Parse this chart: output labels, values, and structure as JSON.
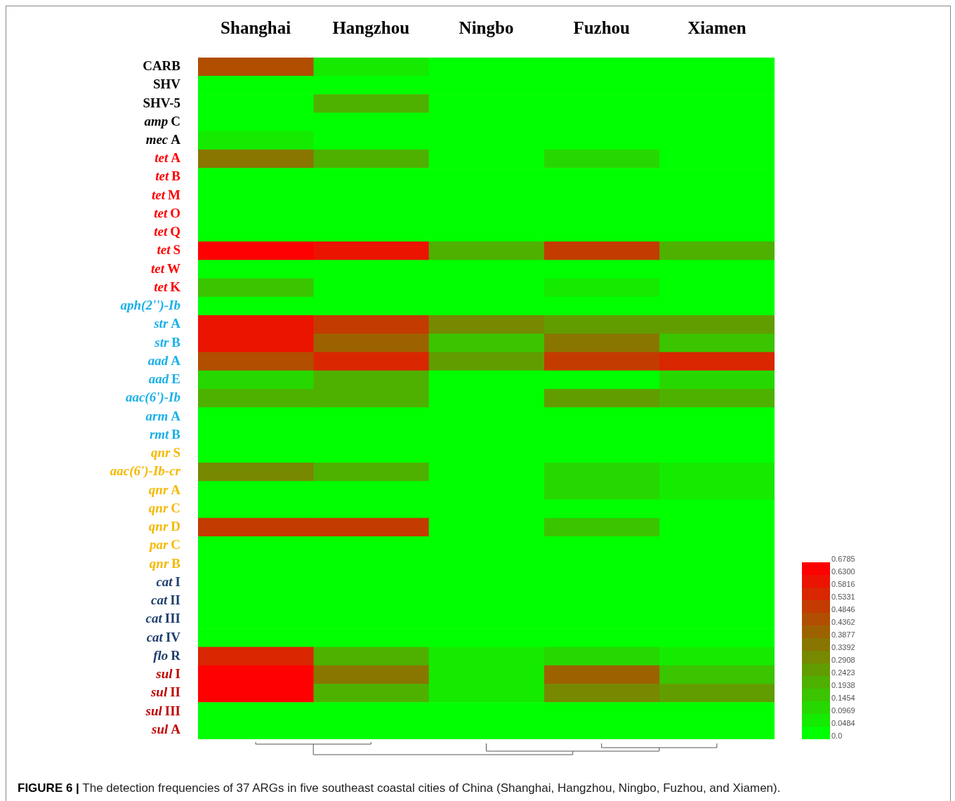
{
  "chart_data": {
    "type": "heatmap",
    "categories": [
      "Shanghai",
      "Hangzhou",
      "Ningbo",
      "Fuzhou",
      "Xiamen"
    ],
    "y_categories": [
      "CARB",
      "SHV",
      "SHV-5",
      "amp C",
      "mec A",
      "tet A",
      "tet B",
      "tet M",
      "tet O",
      "tet Q",
      "tet S",
      "tet W",
      "tet K",
      "aph(2'')-Ib",
      "str A",
      "str B",
      "aad A",
      "aad E",
      "aac(6')-Ib",
      "arm A",
      "rmt B",
      "qnr S",
      "aac(6')-Ib-cr",
      "qnr A",
      "qnr C",
      "qnr D",
      "par C",
      "qnr B",
      "cat I",
      "cat II",
      "cat III",
      "cat IV",
      "flo R",
      "sul I",
      "sul II",
      "sul III",
      "sul A"
    ],
    "cells": [
      [
        0.46,
        0.07,
        0,
        0,
        0
      ],
      [
        0.04,
        0.04,
        0,
        0,
        0
      ],
      [
        0,
        0.2,
        0,
        0,
        0
      ],
      [
        0,
        0,
        0,
        0,
        0
      ],
      [
        0.08,
        0,
        0,
        0,
        0
      ],
      [
        0.36,
        0.24,
        0,
        0.12,
        0.04
      ],
      [
        0,
        0,
        0,
        0,
        0
      ],
      [
        0,
        0,
        0,
        0,
        0
      ],
      [
        0,
        0,
        0,
        0,
        0
      ],
      [
        0,
        0,
        0,
        0,
        0
      ],
      [
        0.6785,
        0.62,
        0.2,
        0.5,
        0.2
      ],
      [
        0,
        0,
        0,
        0,
        0
      ],
      [
        0.15,
        0,
        0,
        0.08,
        0
      ],
      [
        0,
        0,
        0,
        0,
        0
      ],
      [
        0.62,
        0.53,
        0.32,
        0.26,
        0.26
      ],
      [
        0.62,
        0.4,
        0.17,
        0.34,
        0.17
      ],
      [
        0.46,
        0.55,
        0.26,
        0.53,
        0.55
      ],
      [
        0.1,
        0.21,
        0,
        0,
        0.1
      ],
      [
        0.21,
        0.21,
        0.04,
        0.29,
        0.24
      ],
      [
        0,
        0,
        0.04,
        0,
        0.04
      ],
      [
        0,
        0,
        0,
        0,
        0
      ],
      [
        0,
        0,
        0,
        0,
        0
      ],
      [
        0.32,
        0.2,
        0,
        0.12,
        0.08
      ],
      [
        0,
        0,
        0,
        0.12,
        0.08
      ],
      [
        0,
        0,
        0,
        0,
        0
      ],
      [
        0.52,
        0.52,
        0,
        0.15,
        0
      ],
      [
        0,
        0,
        0,
        0,
        0
      ],
      [
        0,
        0,
        0,
        0,
        0
      ],
      [
        0,
        0,
        0,
        0,
        0
      ],
      [
        0,
        0,
        0,
        0,
        0
      ],
      [
        0,
        0,
        0,
        0,
        0
      ],
      [
        0,
        0,
        0,
        0,
        0
      ],
      [
        0.55,
        0.23,
        0.05,
        0.12,
        0.05
      ],
      [
        0.6785,
        0.37,
        0.05,
        0.42,
        0.17
      ],
      [
        0.6785,
        0.2,
        0.05,
        0.33,
        0.26
      ],
      [
        0,
        0,
        0,
        0,
        0
      ],
      [
        0,
        0,
        0,
        0,
        0
      ]
    ],
    "clim": [
      0,
      0.6785
    ],
    "cticks": [
      {
        "value": 0,
        "label": "0.0"
      },
      0.0484,
      0.0969,
      0.1454,
      0.1938,
      0.2423,
      0.2908,
      0.3392,
      0.3877,
      0.4362,
      0.4846,
      0.5331,
      0.5816,
      {
        "value": 0.63,
        "label": "0.6300"
      },
      0.6785
    ],
    "annotations": [
      "FIGURE 6 | The detection frequencies of 37 ARGs in five southeast coastal cities of China (Shanghai, Hangzhou, Ningbo, Fuzhou, and Xiamen)."
    ]
  }
}
